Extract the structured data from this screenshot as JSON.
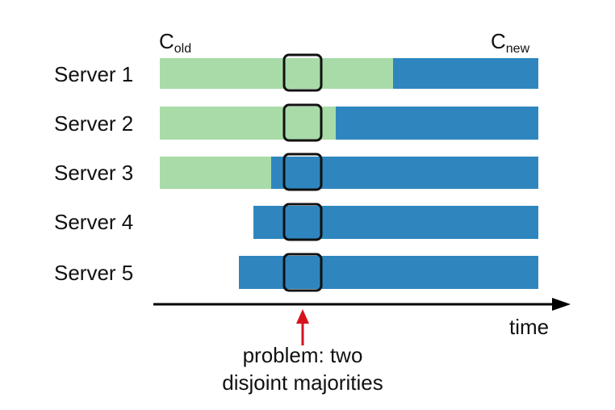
{
  "legend": {
    "old_config": {
      "base": "C",
      "sub": "old"
    },
    "new_config": {
      "base": "C",
      "sub": "new"
    }
  },
  "servers": [
    {
      "label": "Server 1",
      "has_old": true,
      "has_new": true
    },
    {
      "label": "Server 2",
      "has_old": true,
      "has_new": true
    },
    {
      "label": "Server 3",
      "has_old": true,
      "has_new": true
    },
    {
      "label": "Server 4",
      "has_old": false,
      "has_new": true
    },
    {
      "label": "Server 5",
      "has_old": false,
      "has_new": true
    }
  ],
  "axis": {
    "label": "time"
  },
  "callout": {
    "line1": "problem: two",
    "line2": "disjoint majorities"
  },
  "colors": {
    "old": "#a8dba8",
    "new": "#2f86bf",
    "highlight_box": "#111111",
    "arrow": "#d6131c",
    "axis": "#000000"
  }
}
